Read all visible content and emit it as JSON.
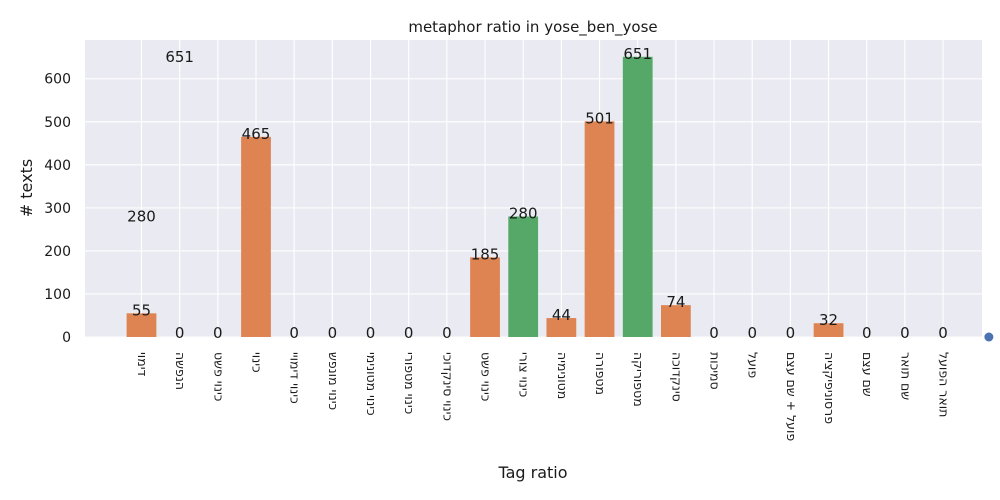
{
  "chart_data": {
    "type": "bar",
    "title": "metaphor ratio in yose_ben_yose",
    "xlabel": "Tag ratio",
    "ylabel": "# texts",
    "ylim": [
      0,
      690
    ],
    "yticks": [
      0,
      100,
      200,
      300,
      400,
      500,
      600
    ],
    "grid": true,
    "categories": [
      "דימוי",
      "הנפשה",
      "כינוי פשט",
      "כינוי",
      "כינוי דימויי",
      "כינוי מונפש",
      "כינוי מטונימי",
      "כינוי מטפורי",
      "כינוי סינקדוכי",
      "כינוי פשט",
      "כינוי צורי",
      "מטונימיה",
      "מטפורה",
      "מטפוריקה",
      "סינקדוכה",
      "סמיכות",
      "פועל",
      "פועל + שם עצם",
      "פרסוניפיקציה",
      "שם עצם",
      "שם תואר",
      "תואר הפועל"
    ],
    "values": [
      55,
      0,
      0,
      465,
      0,
      0,
      0,
      0,
      0,
      185,
      280,
      44,
      501,
      651,
      74,
      0,
      0,
      0,
      32,
      0,
      0,
      0
    ],
    "highlight": [
      10,
      13
    ],
    "stray_labels": [
      {
        "category_index": 0,
        "value": 280,
        "text": "280"
      },
      {
        "category_index": 1,
        "value": 651,
        "text": "651"
      }
    ],
    "stray_marker": {
      "category_position": 22.2,
      "value": 0
    },
    "colors": {
      "background": "#eaeaf2",
      "grid": "#ffffff",
      "bar": "#dd8452",
      "bar_highlight": "#55a868",
      "marker": "#4c72b0"
    }
  }
}
